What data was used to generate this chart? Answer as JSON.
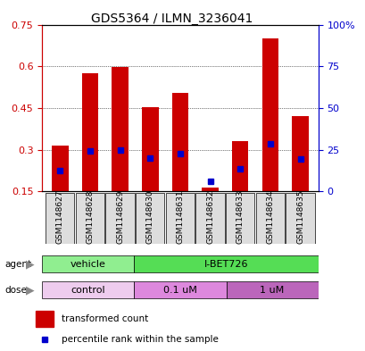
{
  "title": "GDS5364 / ILMN_3236041",
  "samples": [
    "GSM1148627",
    "GSM1148628",
    "GSM1148629",
    "GSM1148630",
    "GSM1148631",
    "GSM1148632",
    "GSM1148633",
    "GSM1148634",
    "GSM1148635"
  ],
  "red_values": [
    0.315,
    0.575,
    0.598,
    0.452,
    0.505,
    0.162,
    0.33,
    0.7,
    0.42
  ],
  "blue_values": [
    0.225,
    0.295,
    0.3,
    0.27,
    0.285,
    0.185,
    0.23,
    0.32,
    0.265
  ],
  "ymin": 0.15,
  "ymax": 0.75,
  "yticks": [
    0.15,
    0.3,
    0.45,
    0.6,
    0.75
  ],
  "right_yticks": [
    0,
    25,
    50,
    75,
    100
  ],
  "agent_groups": [
    {
      "label": "vehicle",
      "start": 0,
      "end": 3,
      "color": "#90EE90"
    },
    {
      "label": "I-BET726",
      "start": 3,
      "end": 9,
      "color": "#55DD55"
    }
  ],
  "dose_groups": [
    {
      "label": "control",
      "start": 0,
      "end": 3,
      "color": "#EECCEE"
    },
    {
      "label": "0.1 uM",
      "start": 3,
      "end": 6,
      "color": "#DD88DD"
    },
    {
      "label": "1 uM",
      "start": 6,
      "end": 9,
      "color": "#BB66BB"
    }
  ],
  "bar_color": "#CC0000",
  "blue_color": "#0000CC",
  "bar_width": 0.55,
  "bg_color": "#DDDDDD",
  "title_color": "#000000",
  "left_tick_color": "#CC0000",
  "right_tick_color": "#0000CC",
  "left_label": "agent",
  "right_label": "dose"
}
